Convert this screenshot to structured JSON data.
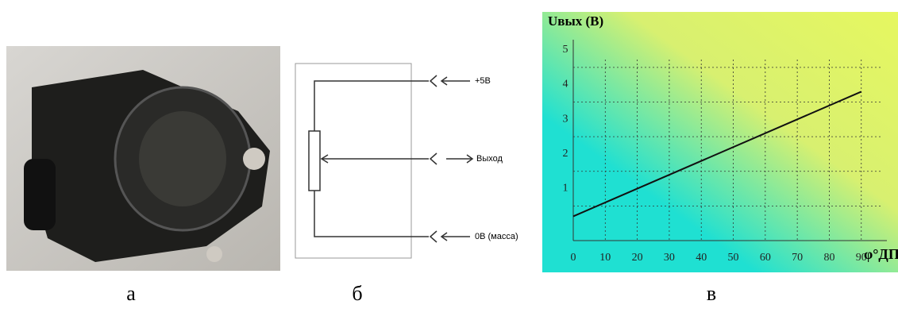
{
  "captions": [
    "а",
    "б",
    "в"
  ],
  "diagram": {
    "labels": [
      "+5В",
      "Выход",
      "0В (масса)"
    ]
  },
  "chart_data": {
    "type": "line",
    "y_label": "Uвых (В)",
    "x_label": "φ°ДП",
    "x": [
      0,
      90
    ],
    "values": [
      0.7,
      4.3
    ],
    "color": "#111111",
    "xlim": [
      0,
      98
    ],
    "ylim": [
      0,
      5.8
    ],
    "xticks": [
      0,
      10,
      20,
      30,
      40,
      50,
      60,
      70,
      80,
      90
    ],
    "yticks": [
      1,
      2,
      3,
      4,
      5
    ],
    "grid": true
  }
}
